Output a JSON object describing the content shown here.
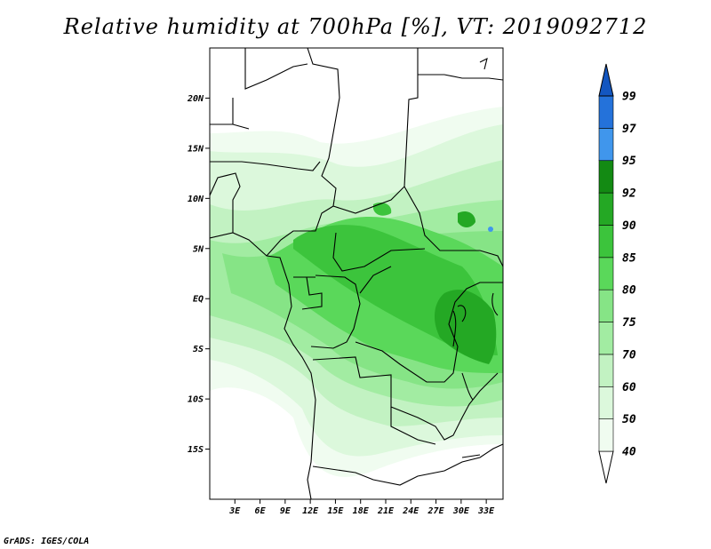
{
  "title": "Relative humidity at 700hPa [%], VT: 2019092712",
  "credit": "GrADS: IGES/COLA",
  "map": {
    "lat_ticks": [
      {
        "label": "20N",
        "value": 20
      },
      {
        "label": "15N",
        "value": 15
      },
      {
        "label": "10N",
        "value": 10
      },
      {
        "label": "5N",
        "value": 5
      },
      {
        "label": "EQ",
        "value": 0
      },
      {
        "label": "5S",
        "value": -5
      },
      {
        "label": "10S",
        "value": -10
      },
      {
        "label": "15S",
        "value": -15
      }
    ],
    "lon_ticks": [
      {
        "label": "3E",
        "value": 3
      },
      {
        "label": "6E",
        "value": 6
      },
      {
        "label": "9E",
        "value": 9
      },
      {
        "label": "12E",
        "value": 12
      },
      {
        "label": "15E",
        "value": 15
      },
      {
        "label": "18E",
        "value": 18
      },
      {
        "label": "21E",
        "value": 21
      },
      {
        "label": "24E",
        "value": 24
      },
      {
        "label": "27E",
        "value": 27
      },
      {
        "label": "30E",
        "value": 30
      },
      {
        "label": "33E",
        "value": 33
      }
    ],
    "lon_range": [
      0,
      35
    ],
    "lat_range": [
      -20,
      25
    ]
  },
  "colorbar": {
    "levels": [
      {
        "label": "40",
        "color": "#f0fcf0"
      },
      {
        "label": "50",
        "color": "#dcf8dc"
      },
      {
        "label": "60",
        "color": "#c2f2c2"
      },
      {
        "label": "70",
        "color": "#a2eca2"
      },
      {
        "label": "75",
        "color": "#86e486"
      },
      {
        "label": "80",
        "color": "#5ad85a"
      },
      {
        "label": "85",
        "color": "#3cc43c"
      },
      {
        "label": "90",
        "color": "#24a824"
      },
      {
        "label": "92",
        "color": "#138a13"
      },
      {
        "label": "95",
        "color": "#4096ec"
      },
      {
        "label": "97",
        "color": "#2472da"
      },
      {
        "label": "99",
        "color": "#1356c0"
      }
    ],
    "top_color": "#1356c0",
    "bottom_color": "#ffffff"
  }
}
